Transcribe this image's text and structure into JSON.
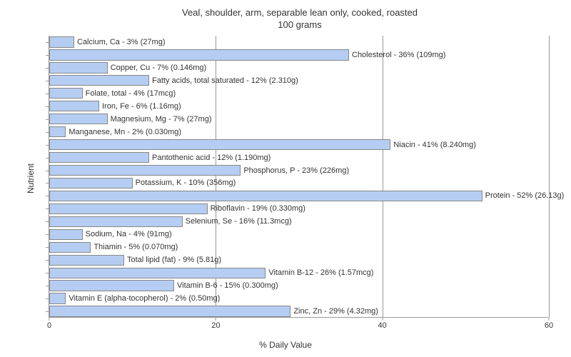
{
  "title_line1": "Veal, shoulder, arm, separable lean only, cooked, roasted",
  "title_line2": "100 grams",
  "xlabel": "% Daily Value",
  "ylabel": "Nutrient",
  "chart": {
    "type": "bar-horizontal",
    "xlim": [
      0,
      60
    ],
    "xticks": [
      0,
      20,
      40,
      60
    ],
    "bar_color": "#b5cdf2",
    "bar_border": "#888888",
    "label_fontsize": 11,
    "title_fontsize": 13,
    "axis_color": "#999999",
    "background_color": "#ffffff",
    "text_color": "#333333",
    "nutrients": [
      {
        "label": "Calcium, Ca - 3% (27mg)",
        "value": 3
      },
      {
        "label": "Cholesterol - 36% (109mg)",
        "value": 36
      },
      {
        "label": "Copper, Cu - 7% (0.146mg)",
        "value": 7
      },
      {
        "label": "Fatty acids, total saturated - 12% (2.310g)",
        "value": 12
      },
      {
        "label": "Folate, total - 4% (17mcg)",
        "value": 4
      },
      {
        "label": "Iron, Fe - 6% (1.16mg)",
        "value": 6
      },
      {
        "label": "Magnesium, Mg - 7% (27mg)",
        "value": 7
      },
      {
        "label": "Manganese, Mn - 2% (0.030mg)",
        "value": 2
      },
      {
        "label": "Niacin - 41% (8.240mg)",
        "value": 41
      },
      {
        "label": "Pantothenic acid - 12% (1.190mg)",
        "value": 12
      },
      {
        "label": "Phosphorus, P - 23% (226mg)",
        "value": 23
      },
      {
        "label": "Potassium, K - 10% (356mg)",
        "value": 10
      },
      {
        "label": "Protein - 52% (26.13g)",
        "value": 52
      },
      {
        "label": "Riboflavin - 19% (0.330mg)",
        "value": 19
      },
      {
        "label": "Selenium, Se - 16% (11.3mcg)",
        "value": 16
      },
      {
        "label": "Sodium, Na - 4% (91mg)",
        "value": 4
      },
      {
        "label": "Thiamin - 5% (0.070mg)",
        "value": 5
      },
      {
        "label": "Total lipid (fat) - 9% (5.81g)",
        "value": 9
      },
      {
        "label": "Vitamin B-12 - 26% (1.57mcg)",
        "value": 26
      },
      {
        "label": "Vitamin B-6 - 15% (0.300mg)",
        "value": 15
      },
      {
        "label": "Vitamin E (alpha-tocopherol) - 2% (0.50mg)",
        "value": 2
      },
      {
        "label": "Zinc, Zn - 29% (4.32mg)",
        "value": 29
      }
    ]
  }
}
